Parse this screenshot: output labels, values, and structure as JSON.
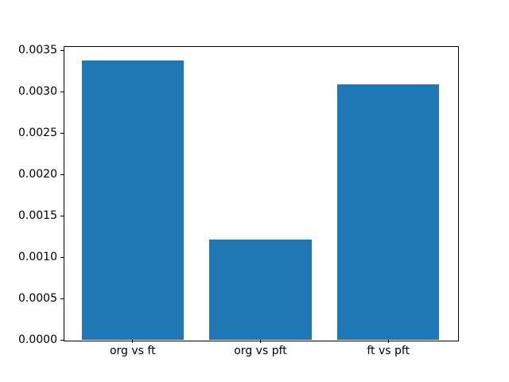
{
  "chart_data": {
    "type": "bar",
    "title": "",
    "categories": [
      "org vs ft",
      "org vs pft",
      "ft vs pft"
    ],
    "values": [
      0.00338,
      0.00121,
      0.00309
    ],
    "series": [
      {
        "name": "",
        "values": [
          0.00338,
          0.00121,
          0.00309
        ]
      }
    ],
    "bar_color": "#1f77b4",
    "bar_width": 0.8,
    "x_positions": [
      0,
      1,
      2
    ],
    "xlim": [
      -0.54,
      2.54
    ],
    "ylim": [
      0,
      0.003549
    ],
    "yticks": [
      0.0,
      0.0005,
      0.001,
      0.0015,
      0.002,
      0.0025,
      0.003,
      0.0035
    ],
    "ytick_labels": [
      "0.0000",
      "0.0005",
      "0.0010",
      "0.0015",
      "0.0020",
      "0.0025",
      "0.0030",
      "0.0035"
    ],
    "xlabel": "",
    "ylabel": "",
    "grid": false,
    "legend_position": "none",
    "background_color": "#ffffff",
    "axis_color": "#000000"
  }
}
